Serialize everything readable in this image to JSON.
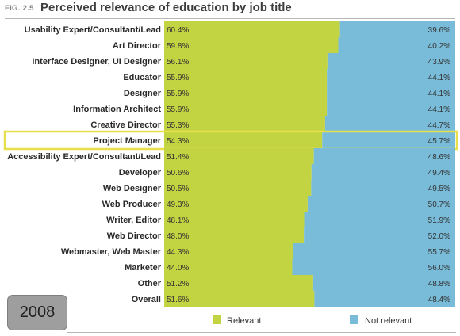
{
  "header": {
    "fig_label": "FIG. 2.5",
    "title": "Perceived relevance of education by job title"
  },
  "badge": {
    "year": "2008"
  },
  "colors": {
    "relevant": "#c3d442",
    "not_relevant": "#79bcd9",
    "highlight": "#e7df4b"
  },
  "chart_data": {
    "type": "bar",
    "orientation": "horizontal",
    "stacked": true,
    "title": "Perceived relevance of education by job title",
    "categories": [
      "Usability Expert/Consultant/Lead",
      "Art Director",
      "Interface Designer, UI Designer",
      "Educator",
      "Designer",
      "Information Architect",
      "Creative Director",
      "Project Manager",
      "Accessibility Expert/Consultant/Lead",
      "Developer",
      "Web Designer",
      "Web Producer",
      "Writer, Editor",
      "Web Director",
      "Webmaster, Web Master",
      "Marketer",
      "Other",
      "Overall"
    ],
    "series": [
      {
        "name": "Relevant",
        "values": [
          60.4,
          59.8,
          56.1,
          55.9,
          55.9,
          55.9,
          55.3,
          54.3,
          51.4,
          50.6,
          50.5,
          49.3,
          48.1,
          48.0,
          44.3,
          44.0,
          51.2,
          51.6
        ],
        "labels": [
          "60.4%",
          "59.8%",
          "56.1%",
          "55.9%",
          "55.9%",
          "55.9%",
          "55.3%",
          "54.3%",
          "51.4%",
          "50.6%",
          "50.5%",
          "49.3%",
          "48.1%",
          "48.0%",
          "44.3%",
          "44.0%",
          "51.2%",
          "51.6%"
        ]
      },
      {
        "name": "Not relevant",
        "values": [
          39.6,
          40.2,
          43.9,
          44.1,
          44.1,
          44.1,
          44.7,
          45.7,
          48.6,
          49.4,
          49.5,
          50.7,
          51.9,
          52.0,
          55.7,
          56.0,
          48.8,
          48.4
        ],
        "labels": [
          "39.6%",
          "40.2%",
          "43.9%",
          "44.1%",
          "44.1%",
          "44.1%",
          "44.7%",
          "45.7%",
          "48.6%",
          "49.4%",
          "49.5%",
          "50.7%",
          "51.9%",
          "52.0%",
          "55.7%",
          "56.0%",
          "48.8%",
          "48.4%"
        ]
      }
    ],
    "xlim": [
      0,
      100
    ],
    "highlighted_category": "Project Manager",
    "legend": {
      "position": "bottom",
      "entries": [
        "Relevant",
        "Not relevant"
      ]
    },
    "grid": false
  }
}
